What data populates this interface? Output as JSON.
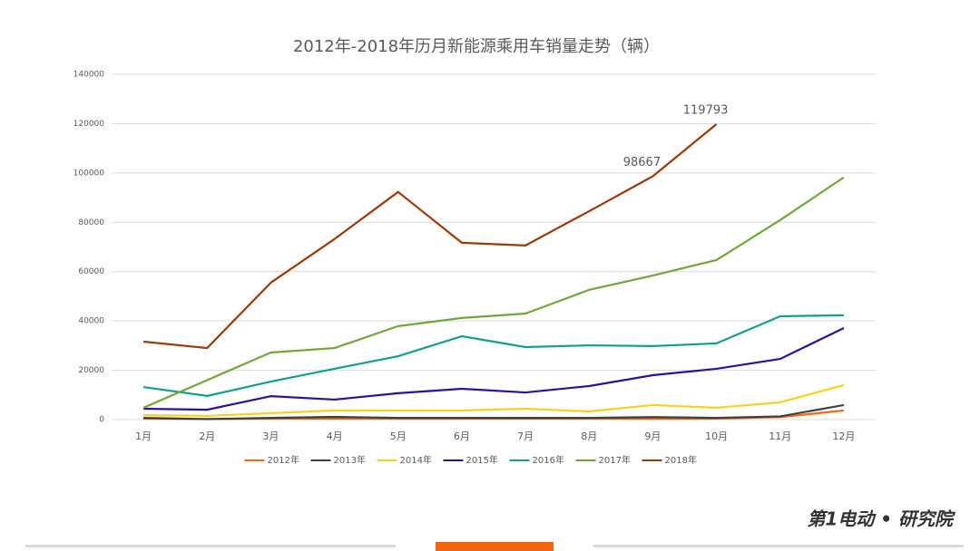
{
  "chart_data": {
    "type": "line",
    "title": "2012年-2018年历月新能源乘用车销量走势（辆）",
    "categories": [
      "1月",
      "2月",
      "3月",
      "4月",
      "5月",
      "6月",
      "7月",
      "8月",
      "9月",
      "10月",
      "11月",
      "12月"
    ],
    "ylim": [
      0,
      140000
    ],
    "yticks": [
      0,
      20000,
      40000,
      60000,
      80000,
      100000,
      120000,
      140000
    ],
    "grid": true,
    "legend": "bottom",
    "data_labels": {
      "series": 6,
      "indices": [
        8,
        9
      ]
    },
    "series": [
      {
        "name": "2012年",
        "color": "#f4650f",
        "values": [
          400,
          200,
          400,
          400,
          400,
          400,
          400,
          400,
          300,
          400,
          1000,
          3700
        ]
      },
      {
        "name": "2013年",
        "color": "#404040",
        "values": [
          700,
          200,
          700,
          1100,
          700,
          700,
          700,
          700,
          1000,
          700,
          1300,
          5900
        ]
      },
      {
        "name": "2014年",
        "color": "#f7d21b",
        "values": [
          1800,
          1500,
          2600,
          3700,
          3700,
          3700,
          4400,
          3300,
          5900,
          4800,
          7000,
          14000
        ]
      },
      {
        "name": "2015年",
        "color": "#2f0f9c",
        "values": [
          4400,
          4000,
          9500,
          8100,
          10700,
          12500,
          11000,
          13600,
          18000,
          20600,
          24600,
          37100
        ]
      },
      {
        "name": "2016年",
        "color": "#12a08a",
        "values": [
          13200,
          9600,
          15400,
          20600,
          25700,
          33800,
          29400,
          30100,
          29800,
          30900,
          41900,
          42300
        ]
      },
      {
        "name": "2017年",
        "color": "#6fa839",
        "values": [
          4800,
          16000,
          27200,
          29000,
          37900,
          41200,
          43000,
          52600,
          58400,
          64700,
          80900,
          98200
        ]
      },
      {
        "name": "2018年",
        "color": "#9b3a06",
        "values": [
          31600,
          29000,
          55500,
          73200,
          92300,
          71700,
          70600,
          84500,
          98667,
          119793,
          null,
          null
        ]
      }
    ]
  },
  "logo": "第1电动 • 研究院"
}
